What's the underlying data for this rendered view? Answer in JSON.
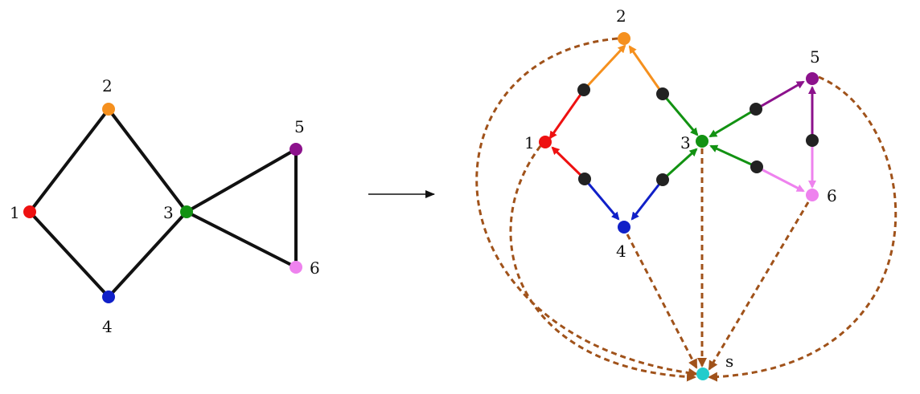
{
  "left_graph": {
    "nodes": [
      {
        "id": "1",
        "label": "1",
        "color": "#ee1111"
      },
      {
        "id": "2",
        "label": "2",
        "color": "#f5901e"
      },
      {
        "id": "3",
        "label": "3",
        "color": "#129212"
      },
      {
        "id": "4",
        "label": "4",
        "color": "#1020c8"
      },
      {
        "id": "5",
        "label": "5",
        "color": "#8c128c"
      },
      {
        "id": "6",
        "label": "6",
        "color": "#ee82ee"
      }
    ],
    "edges": [
      [
        "1",
        "2"
      ],
      [
        "2",
        "3"
      ],
      [
        "1",
        "4"
      ],
      [
        "4",
        "3"
      ],
      [
        "3",
        "5"
      ],
      [
        "3",
        "6"
      ],
      [
        "5",
        "6"
      ]
    ]
  },
  "right_graph": {
    "nodes": [
      {
        "id": "1",
        "label": "1",
        "color": "#ee1111"
      },
      {
        "id": "2",
        "label": "2",
        "color": "#f5901e"
      },
      {
        "id": "3",
        "label": "3",
        "color": "#129212"
      },
      {
        "id": "4",
        "label": "4",
        "color": "#1020c8"
      },
      {
        "id": "5",
        "label": "5",
        "color": "#8c128c"
      },
      {
        "id": "6",
        "label": "6",
        "color": "#ee82ee"
      },
      {
        "id": "s",
        "label": "s",
        "color": "#22cccc"
      }
    ],
    "subdivided_edges": [
      {
        "ends": [
          "1",
          "2"
        ],
        "toward_first_color": "#ee1111",
        "toward_second_color": "#f5901e"
      },
      {
        "ends": [
          "3",
          "2"
        ],
        "toward_first_color": "#129212",
        "toward_second_color": "#f5901e"
      },
      {
        "ends": [
          "1",
          "4"
        ],
        "toward_first_color": "#ee1111",
        "toward_second_color": "#1020c8"
      },
      {
        "ends": [
          "4",
          "3"
        ],
        "toward_first_color": "#1020c8",
        "toward_second_color": "#129212"
      },
      {
        "ends": [
          "3",
          "5"
        ],
        "toward_first_color": "#129212",
        "toward_second_color": "#8c128c"
      },
      {
        "ends": [
          "3",
          "6"
        ],
        "toward_first_color": "#129212",
        "toward_second_color": "#ee82ee"
      },
      {
        "ends": [
          "5",
          "6"
        ],
        "toward_first_color": "#8c128c",
        "toward_second_color": "#ee82ee"
      }
    ],
    "midpoint_color": "#222222",
    "sink_edges": {
      "from": [
        "1",
        "2",
        "3",
        "4",
        "5",
        "6"
      ],
      "to": "s",
      "color": "#a0521a",
      "style": "dashed"
    }
  },
  "transform_arrow_color": "#111111"
}
